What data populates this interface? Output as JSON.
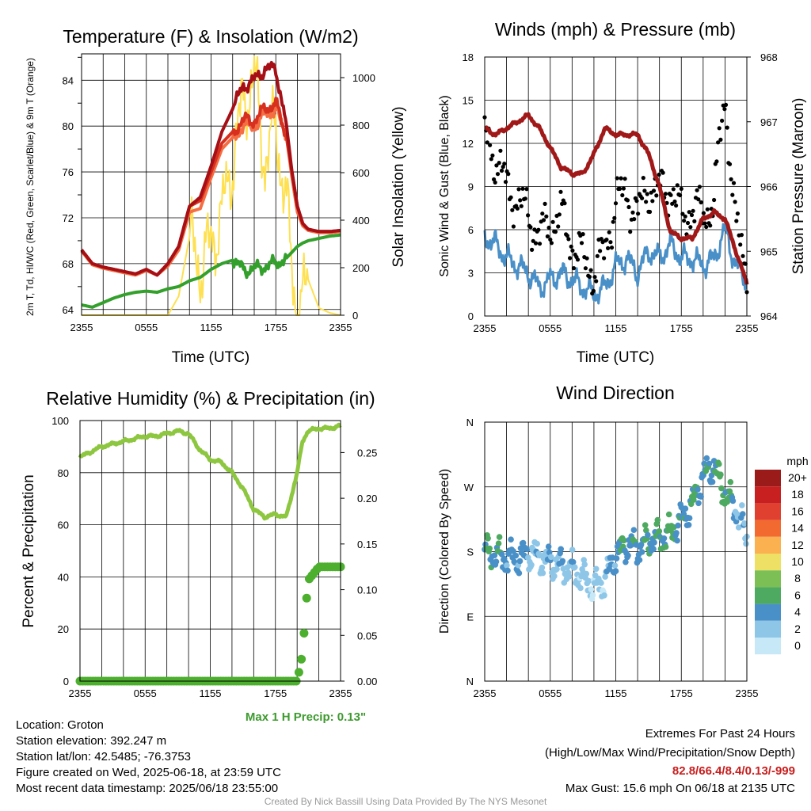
{
  "colors": {
    "temp_red": "#d7301f",
    "heat_index": "#a50f15",
    "orange_9m": "#f46d43",
    "dewpoint_green": "#33a02c",
    "solar_yellow": "#fee050",
    "wind_blue": "#4a90c8",
    "pressure_maroon": "#a01818",
    "gust_black": "#000000",
    "rh_green": "#8dc63f",
    "precip_green": "#4daf2e",
    "precip_label": "#3d9a2e",
    "extremes_red": "#c81e1e"
  },
  "chart_data": [
    {
      "type": "line",
      "title": "Temperature (F) & Insolation (W/m2)",
      "xlabel": "Time (UTC)",
      "ylabel": "2m T, Td, HI/WC (Red, Green, Scarlet/Blue) & 9m T (Orange)",
      "ylabel_right": "Solar Insolation (Yellow)",
      "x_ticks": [
        "2355",
        "0555",
        "1155",
        "1755",
        "2355"
      ],
      "x_range_hours": [
        0,
        24
      ],
      "ylim": [
        63.5,
        86.3
      ],
      "yticks": [
        64,
        68,
        72,
        76,
        80,
        84
      ],
      "ylim_right": [
        0,
        1100
      ],
      "yticks_right": [
        0,
        200,
        400,
        600,
        800,
        1000
      ],
      "grid": true,
      "x": [
        0,
        1,
        2,
        3,
        4,
        5,
        6,
        7,
        8,
        9,
        10,
        11,
        12,
        13,
        14,
        15,
        16,
        17,
        18,
        19,
        19.5,
        20,
        20.5,
        21,
        22,
        23,
        24
      ],
      "series": [
        {
          "name": "2m T",
          "color": "#d7301f",
          "values": [
            69.2,
            68.0,
            67.7,
            67.5,
            67.3,
            67.1,
            67.5,
            67.0,
            68.0,
            69.5,
            73.0,
            73.5,
            76.0,
            78.5,
            79.5,
            80.5,
            80.5,
            81.5,
            82.0,
            79.0,
            76.0,
            73.0,
            71.5,
            71.0,
            70.8,
            70.8,
            70.9
          ]
        },
        {
          "name": "Heat Index",
          "color": "#a50f15",
          "values": [
            69.2,
            68.0,
            67.7,
            67.5,
            67.3,
            67.1,
            67.5,
            67.0,
            68.0,
            69.5,
            73.0,
            73.8,
            76.5,
            79.5,
            81.5,
            83.5,
            84.0,
            85.0,
            85.0,
            80.0,
            76.0,
            73.0,
            71.5,
            71.0,
            70.8,
            70.8,
            70.9
          ]
        },
        {
          "name": "9m T",
          "color": "#f46d43",
          "values": [
            69.1,
            67.9,
            67.6,
            67.4,
            67.2,
            67.0,
            67.4,
            67.0,
            67.8,
            69.2,
            72.5,
            72.8,
            75.5,
            78.0,
            79.0,
            80.0,
            80.0,
            81.0,
            81.5,
            79.0,
            75.5,
            72.5,
            71.3,
            70.9,
            70.7,
            70.7,
            70.8
          ]
        },
        {
          "name": "Dewpoint",
          "color": "#33a02c",
          "values": [
            64.4,
            64.2,
            64.6,
            65.0,
            65.3,
            65.5,
            65.6,
            65.5,
            65.8,
            66.0,
            66.5,
            66.8,
            67.5,
            68.0,
            68.3,
            67.5,
            67.5,
            67.8,
            68.0,
            68.5,
            69.0,
            69.5,
            69.8,
            70.0,
            70.2,
            70.4,
            70.5
          ]
        },
        {
          "name": "Solar Insolation",
          "axis": "right",
          "color": "#fee050",
          "values": [
            0,
            0,
            0,
            0,
            0,
            0,
            0,
            0,
            0,
            80,
            330,
            200,
            300,
            420,
            650,
            900,
            1000,
            650,
            800,
            450,
            200,
            0,
            40,
            150,
            30,
            10,
            0
          ]
        }
      ]
    },
    {
      "type": "line",
      "title": "Winds (mph) & Pressure (mb)",
      "xlabel": "Time (UTC)",
      "ylabel": "Sonic Wind & Gust (Blue, Black)",
      "ylabel_right": "Station Pressure (Maroon)",
      "x_ticks": [
        "2355",
        "0555",
        "1155",
        "1755",
        "2355"
      ],
      "x_range_hours": [
        0,
        24
      ],
      "ylim": [
        0,
        18
      ],
      "yticks": [
        0,
        3,
        6,
        9,
        12,
        15,
        18
      ],
      "ylim_right": [
        964,
        968
      ],
      "yticks_right": [
        964,
        965,
        966,
        967,
        968
      ],
      "grid": true,
      "x": [
        0,
        1,
        2,
        3,
        4,
        5,
        6,
        7,
        8,
        9,
        10,
        11,
        12,
        13,
        14,
        15,
        16,
        17,
        18,
        19,
        20,
        21,
        22,
        23,
        24
      ],
      "series": [
        {
          "name": "Sonic Wind",
          "color": "#4a90c8",
          "values": [
            5.5,
            5.0,
            4.0,
            3.5,
            3.0,
            2.0,
            2.5,
            3.0,
            2.5,
            2.0,
            1.5,
            2.0,
            3.5,
            4.0,
            3.0,
            4.5,
            4.0,
            5.0,
            4.0,
            4.0,
            3.5,
            4.0,
            6.0,
            3.5,
            2.5
          ]
        },
        {
          "name": "Gust",
          "color": "#000000",
          "marker": "dot",
          "values": [
            12.5,
            11.0,
            9.0,
            8.0,
            7.0,
            5.5,
            6.5,
            7.0,
            5.0,
            4.0,
            3.0,
            4.5,
            8.0,
            8.5,
            7.0,
            9.0,
            8.5,
            9.0,
            7.0,
            7.5,
            7.0,
            8.0,
            15.6,
            6.0,
            3.5
          ]
        },
        {
          "name": "Station Pressure",
          "axis": "right",
          "color": "#a01818",
          "values": [
            966.9,
            966.8,
            966.9,
            967.0,
            967.1,
            966.9,
            966.6,
            966.3,
            966.2,
            966.2,
            966.5,
            966.9,
            966.8,
            966.8,
            966.8,
            966.5,
            966.0,
            965.3,
            965.2,
            965.2,
            965.5,
            965.6,
            965.5,
            965.0,
            964.5
          ]
        }
      ]
    },
    {
      "type": "line",
      "title": "Relative Humidity (%) & Precipitation (in)",
      "ylabel": "Percent & Precipitation",
      "x_ticks": [
        "2355",
        "0555",
        "1155",
        "1755",
        "2355"
      ],
      "x_range_hours": [
        0,
        24
      ],
      "ylim": [
        0,
        100
      ],
      "yticks": [
        0,
        20,
        40,
        60,
        80,
        100
      ],
      "ylim_right": [
        0,
        0.285
      ],
      "yticks_right": [
        "0.00",
        "0.05",
        "0.10",
        "0.15",
        "0.20",
        "0.25"
      ],
      "grid": true,
      "annotation": "Max 1 H Precip: 0.13\"",
      "x": [
        0,
        1,
        2,
        3,
        4,
        5,
        6,
        7,
        8,
        9,
        10,
        11,
        12,
        13,
        14,
        15,
        16,
        17,
        18,
        19,
        20,
        20.5,
        21,
        22,
        23,
        24
      ],
      "series": [
        {
          "name": "Relative Humidity",
          "color": "#8dc63f",
          "values": [
            86,
            88,
            90,
            91,
            92,
            93,
            94,
            94,
            95,
            96,
            95,
            89,
            85,
            84,
            80,
            74,
            66,
            63,
            64,
            63,
            80,
            92,
            96,
            97,
            97,
            98
          ]
        },
        {
          "name": "Precipitation",
          "axis": "right",
          "marker": "dot",
          "color": "#4daf2e",
          "values": [
            0,
            0,
            0,
            0,
            0,
            0,
            0,
            0,
            0,
            0,
            0,
            0,
            0,
            0,
            0,
            0,
            0,
            0,
            0,
            0,
            0,
            0.03,
            0.11,
            0.125,
            0.125,
            0.125
          ]
        }
      ]
    },
    {
      "type": "scatter",
      "title": "Wind Direction",
      "ylabel": "Direction (Colored By Speed)",
      "x_ticks": [
        "2355",
        "0555",
        "1155",
        "1755",
        "2355"
      ],
      "x_range_hours": [
        0,
        24
      ],
      "y_categories": [
        "N",
        "E",
        "S",
        "W",
        "N"
      ],
      "ylim_degrees": [
        0,
        360
      ],
      "grid": true,
      "legend_title": "mph",
      "legend_labels": [
        "0",
        "2",
        "4",
        "6",
        "8",
        "10",
        "12",
        "14",
        "16",
        "18",
        "20+"
      ],
      "legend_colors": [
        "#c6e8f7",
        "#8ec6e8",
        "#4a90c8",
        "#4daa60",
        "#7cbf55",
        "#ede065",
        "#fbb150",
        "#f26a30",
        "#e04030",
        "#c82020",
        "#9b1a1a"
      ],
      "x": [
        0,
        1,
        2,
        3,
        4,
        5,
        6,
        7,
        8,
        9,
        10,
        11,
        12,
        13,
        14,
        15,
        16,
        17,
        18,
        19,
        20,
        21,
        22,
        23,
        24
      ],
      "series": [
        {
          "name": "Wind Direction",
          "values": [
            180,
            175,
            172,
            170,
            178,
            172,
            165,
            160,
            155,
            145,
            130,
            140,
            175,
            190,
            185,
            195,
            200,
            205,
            225,
            245,
            285,
            300,
            260,
            240,
            200
          ],
          "speeds": [
            5,
            5,
            4,
            4,
            3,
            2,
            3,
            3,
            2,
            2,
            1,
            2,
            4,
            5,
            4,
            5,
            5,
            6,
            4,
            5,
            4,
            5,
            6,
            3,
            2
          ]
        }
      ]
    }
  ],
  "info": {
    "location": "Location: Groton",
    "elevation": "Station elevation: 392.247 m",
    "latlon": "Station lat/lon: 42.5485; -76.3753",
    "created": "Figure created on Wed, 2025-06-18, at 23:59 UTC",
    "recent": "Most recent data timestamp: 2025/06/18 23:55:00"
  },
  "extremes": {
    "heading": "Extremes For Past 24 Hours",
    "subheading": "(High/Low/Max Wind/Precipitation/Snow Depth)",
    "values": "82.8/66.4/8.4/0.13/-999",
    "max_gust": "Max Gust: 15.6 mph On 06/18 at 2135 UTC"
  },
  "credit": "Created By Nick Bassill Using Data Provided By The NYS Mesonet"
}
